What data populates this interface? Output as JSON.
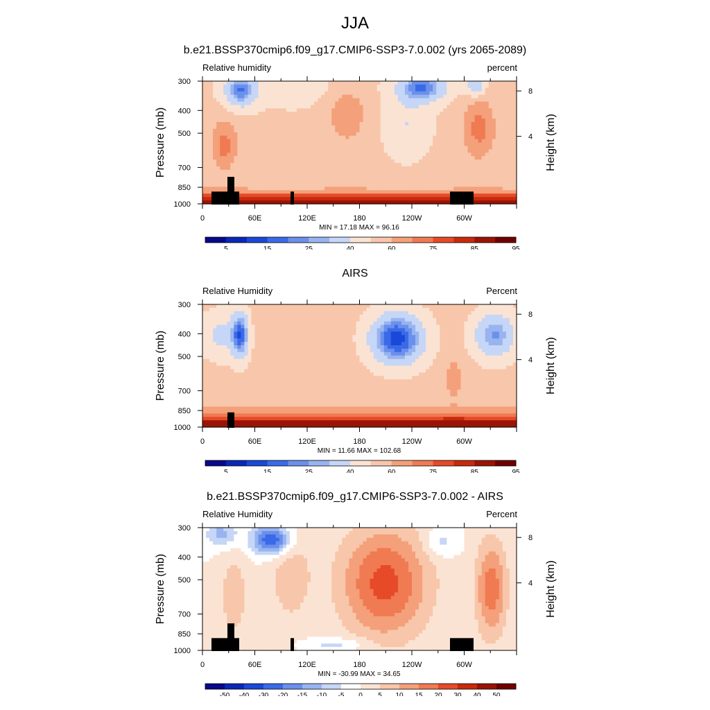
{
  "main_title": "JJA",
  "panels": [
    {
      "title": "b.e21.BSSP370cmip6.f09_g17.CMIP6-SSP3-7.0.002 (yrs 2065-2089)",
      "left_string": "Relative humidity",
      "right_string": "percent",
      "min_max": "MIN =  17.18  MAX =  96.16",
      "palette": "abs"
    },
    {
      "title": "AIRS",
      "left_string": "Relative Humidity",
      "right_string": "Percent",
      "min_max": "MIN =  11.66  MAX = 102.68",
      "palette": "abs"
    },
    {
      "title": "b.e21.BSSP370cmip6.f09_g17.CMIP6-SSP3-7.0.002 - AIRS",
      "left_string": "Relative Humidity",
      "right_string": "Percent",
      "min_max": "MIN = -30.99  MAX =  34.65",
      "palette": "diff"
    }
  ],
  "chart_data": [
    {
      "type": "heatmap",
      "title": "b.e21.BSSP370cmip6.f09_g17.CMIP6-SSP3-7.0.002 (yrs 2065-2089)",
      "xlabel": "",
      "ylabel": "Pressure (mb)",
      "y2label": "Height (km)",
      "x_ticks": [
        "0",
        "60E",
        "120E",
        "180",
        "120W",
        "60W"
      ],
      "y_ticks": [
        "300",
        "400",
        "500",
        "700",
        "850",
        "1000"
      ],
      "y2_ticks": [
        "8",
        "4"
      ],
      "colorbar_labels": [
        "5",
        "15",
        "25",
        "40",
        "60",
        "75",
        "85",
        "95"
      ],
      "variable": "Relative humidity",
      "units": "percent",
      "min": 17.18,
      "max": 96.16
    },
    {
      "type": "heatmap",
      "title": "AIRS",
      "xlabel": "",
      "ylabel": "Pressure (mb)",
      "y2label": "Height (km)",
      "x_ticks": [
        "0",
        "60E",
        "120E",
        "180",
        "120W",
        "60W"
      ],
      "y_ticks": [
        "300",
        "400",
        "500",
        "700",
        "850",
        "1000"
      ],
      "y2_ticks": [
        "8",
        "4"
      ],
      "colorbar_labels": [
        "5",
        "15",
        "25",
        "40",
        "60",
        "75",
        "85",
        "95"
      ],
      "variable": "Relative Humidity",
      "units": "Percent",
      "min": 11.66,
      "max": 102.68
    },
    {
      "type": "heatmap",
      "title": "b.e21.BSSP370cmip6.f09_g17.CMIP6-SSP3-7.0.002 - AIRS",
      "xlabel": "",
      "ylabel": "Pressure (mb)",
      "y2label": "Height (km)",
      "x_ticks": [
        "0",
        "60E",
        "120E",
        "180",
        "120W",
        "60W"
      ],
      "y_ticks": [
        "300",
        "400",
        "500",
        "700",
        "850",
        "1000"
      ],
      "y2_ticks": [
        "8",
        "4"
      ],
      "colorbar_labels": [
        "-50",
        "-40",
        "-30",
        "-20",
        "-15",
        "-10",
        "-5",
        "0",
        "5",
        "10",
        "15",
        "20",
        "30",
        "40",
        "50"
      ],
      "variable": "Relative Humidity",
      "units": "Percent",
      "min": -30.99,
      "max": 34.65
    }
  ],
  "colors": {
    "abs_palette": [
      "#08088a",
      "#0a28b8",
      "#1a48d8",
      "#3a6ae8",
      "#6a90ec",
      "#98b4f0",
      "#c6d6f6",
      "#fbe3d3",
      "#f8c6aa",
      "#f4a07a",
      "#f07a52",
      "#e64a28",
      "#c82a0c",
      "#9a1406",
      "#700000"
    ],
    "diff_palette": [
      "#08088a",
      "#0a28b8",
      "#1a48d8",
      "#3a6ae8",
      "#6a90ec",
      "#98b4f0",
      "#c6d6f6",
      "#ffffff",
      "#fbe3d3",
      "#f8c6aa",
      "#f4a07a",
      "#f07a52",
      "#e64a28",
      "#c82a0c",
      "#9a1406",
      "#700000"
    ]
  }
}
